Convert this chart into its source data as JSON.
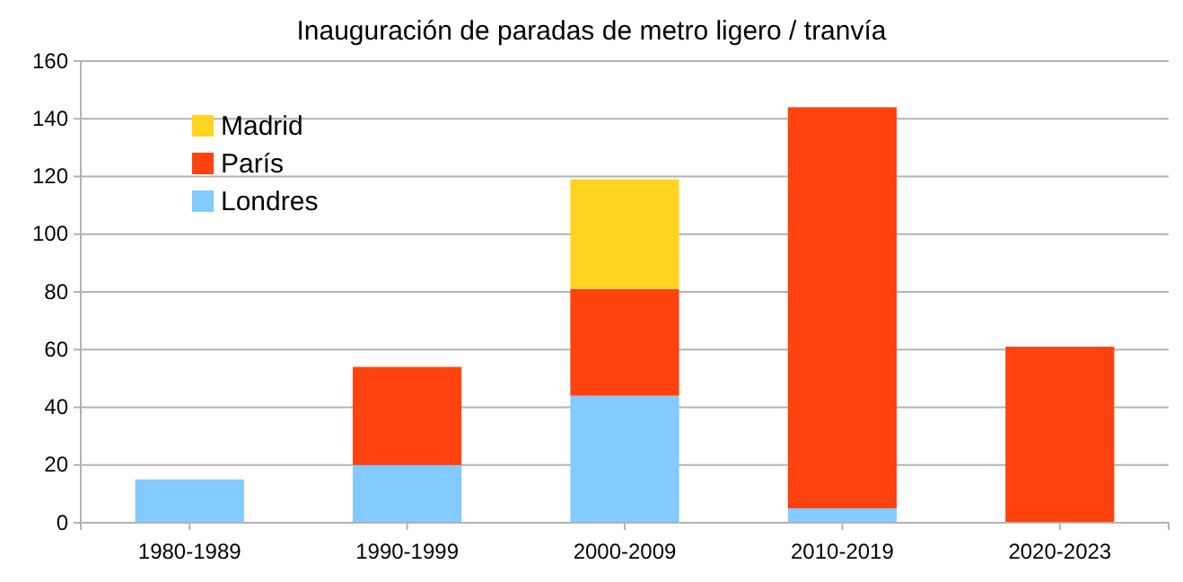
{
  "chart_data": {
    "type": "bar",
    "title": "Inauguración de paradas de metro ligero / tranvía",
    "categories": [
      "1980-1989",
      "1990-1999",
      "2000-2009",
      "2010-2019",
      "2020-2023"
    ],
    "stacked": true,
    "series": [
      {
        "name": "Londres",
        "color": "#83caff",
        "values": [
          15,
          20,
          44,
          5,
          null
        ]
      },
      {
        "name": "París",
        "color": "#ff420e",
        "values": [
          null,
          34,
          37,
          139,
          61
        ]
      },
      {
        "name": "Madrid",
        "color": "#ffd320",
        "values": [
          null,
          null,
          38,
          null,
          null
        ]
      }
    ],
    "ylim": [
      0,
      160
    ],
    "yticks": [
      0,
      20,
      40,
      60,
      80,
      100,
      120,
      140,
      160
    ],
    "grid": "y",
    "legend": "top left"
  }
}
